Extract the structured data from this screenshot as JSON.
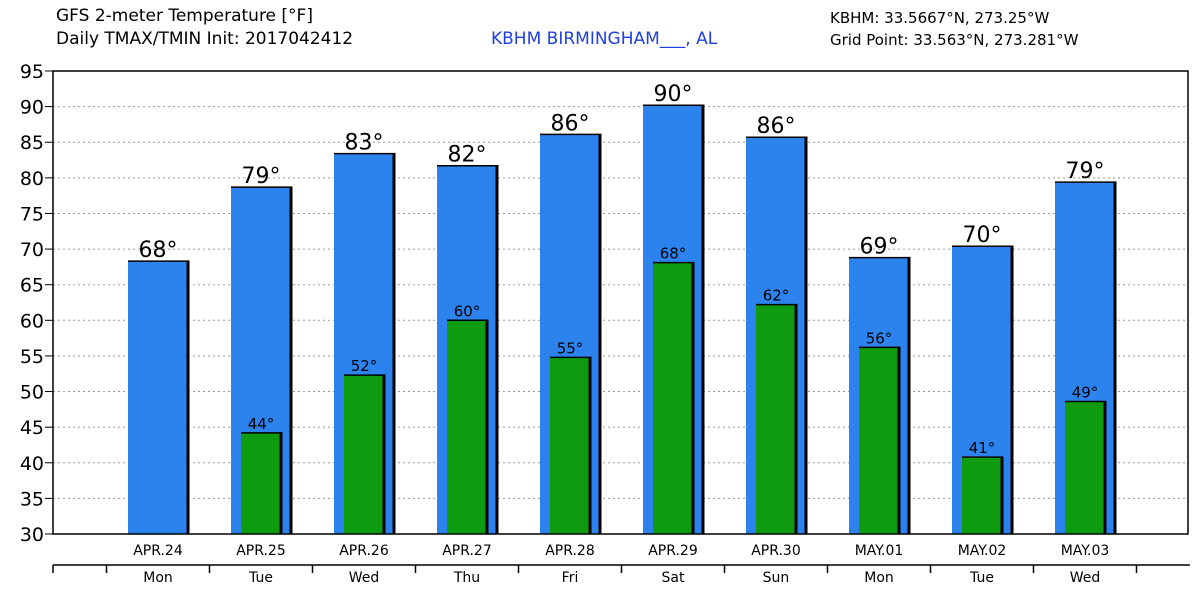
{
  "header": {
    "title_line1": "GFS 2-meter Temperature [°F]",
    "title_line2": "Daily TMAX/TMIN Init: 2017042412",
    "station": "KBHM BIRMINGHAM___, AL",
    "coord_station": "KBHM: 33.5667°N, 273.25°W",
    "coord_grid": "Grid Point: 33.563°N, 273.281°W"
  },
  "colors": {
    "tmax": "#2d83ee",
    "tmin": "#0e9b10",
    "grid": "#9a9a9a",
    "station_text": "#1f3fe0"
  },
  "chart_data": {
    "type": "bar",
    "categories": [
      "APR.24",
      "APR.25",
      "APR.26",
      "APR.27",
      "APR.28",
      "APR.29",
      "APR.30",
      "MAY.01",
      "MAY.02",
      "MAY.03"
    ],
    "weekdays": [
      "Mon",
      "Tue",
      "Wed",
      "Thu",
      "Fri",
      "Sat",
      "Sun",
      "Mon",
      "Tue",
      "Wed"
    ],
    "series": [
      {
        "key": "tmax",
        "values": [
          68.3,
          78.7,
          83.4,
          81.7,
          86.1,
          90.2,
          85.7,
          68.8,
          70.4,
          79.4
        ],
        "labels": [
          "68°",
          "79°",
          "83°",
          "82°",
          "86°",
          "90°",
          "86°",
          "69°",
          "70°",
          "79°"
        ]
      },
      {
        "key": "tmin",
        "values": [
          null,
          44.2,
          52.3,
          60.0,
          54.8,
          68.1,
          62.2,
          56.2,
          40.8,
          48.6
        ],
        "labels": [
          "",
          "44°",
          "52°",
          "60°",
          "55°",
          "68°",
          "62°",
          "56°",
          "41°",
          "49°"
        ]
      }
    ],
    "ylim": [
      30,
      95
    ],
    "yticks": [
      30,
      35,
      40,
      45,
      50,
      55,
      60,
      65,
      70,
      75,
      80,
      85,
      90,
      95
    ],
    "grid": true,
    "legend": "none"
  }
}
